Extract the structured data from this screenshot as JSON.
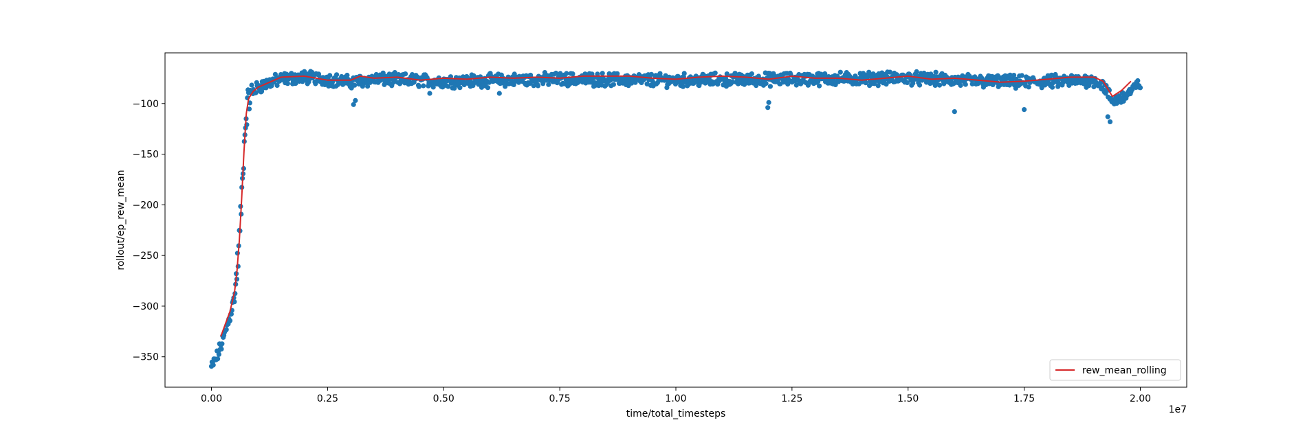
{
  "chart_data": {
    "type": "scatter",
    "xlabel": "time/total_timesteps",
    "ylabel": "rollout/ep_rew_mean",
    "x_offset_label": "1e7",
    "xlim": [
      -0.1,
      2.1
    ],
    "ylim": [
      -380,
      -50
    ],
    "x_scale": 10000000,
    "x_ticks": [
      0.0,
      0.25,
      0.5,
      0.75,
      1.0,
      1.25,
      1.5,
      1.75,
      2.0
    ],
    "x_tick_labels": [
      "0.00",
      "0.25",
      "0.50",
      "0.75",
      "1.00",
      "1.25",
      "1.50",
      "1.75",
      "2.00"
    ],
    "y_ticks": [
      -350,
      -300,
      -250,
      -200,
      -150,
      -100
    ],
    "y_tick_labels": [
      "−350",
      "−300",
      "−250",
      "−200",
      "−150",
      "−100"
    ],
    "grid": false,
    "legend_position": "lower-right",
    "series": [
      {
        "kind": "scatter",
        "color": "#1f77b4",
        "trend_x": [
          0.0,
          0.01,
          0.02,
          0.03,
          0.04,
          0.05,
          0.055,
          0.06,
          0.065,
          0.07,
          0.075,
          0.08,
          0.09,
          0.1,
          0.12,
          0.15,
          0.2,
          0.25,
          0.3,
          0.35,
          0.5,
          0.75,
          1.0,
          1.25,
          1.5,
          1.65,
          1.75,
          1.9,
          1.92,
          1.94,
          1.96,
          1.98,
          2.0
        ],
        "trend_y": [
          -360,
          -352,
          -340,
          -325,
          -310,
          -290,
          -265,
          -235,
          -195,
          -145,
          -110,
          -96,
          -88,
          -84,
          -80,
          -76,
          -74,
          -76,
          -79,
          -76,
          -78,
          -76,
          -77,
          -76,
          -75,
          -78,
          -79,
          -77,
          -82,
          -98,
          -94,
          -88,
          -80
        ],
        "spread": 5,
        "outliers": [
          [
            0.306,
            -101
          ],
          [
            0.31,
            -97
          ],
          [
            1.198,
            -104
          ],
          [
            1.2,
            -99
          ],
          [
            1.6,
            -108
          ],
          [
            1.75,
            -106
          ],
          [
            1.935,
            -118
          ],
          [
            1.93,
            -113
          ],
          [
            0.62,
            -90
          ],
          [
            0.47,
            -90
          ]
        ]
      },
      {
        "kind": "line",
        "name": "rew_mean_rolling",
        "color": "#d62728",
        "x": [
          0.02,
          0.04,
          0.05,
          0.055,
          0.06,
          0.065,
          0.07,
          0.075,
          0.08,
          0.09,
          0.1,
          0.12,
          0.15,
          0.2,
          0.25,
          0.3,
          0.32,
          0.35,
          0.4,
          0.45,
          0.5,
          0.55,
          0.6,
          0.65,
          0.7,
          0.75,
          0.8,
          0.85,
          0.9,
          0.95,
          1.0,
          1.05,
          1.1,
          1.15,
          1.2,
          1.25,
          1.3,
          1.35,
          1.4,
          1.45,
          1.5,
          1.55,
          1.6,
          1.65,
          1.7,
          1.75,
          1.8,
          1.85,
          1.9,
          1.92,
          1.94,
          1.96,
          1.98
        ],
        "y": [
          -330,
          -305,
          -285,
          -265,
          -235,
          -195,
          -148,
          -110,
          -95,
          -88,
          -84,
          -80,
          -74,
          -73,
          -77,
          -77,
          -73,
          -75,
          -74,
          -77,
          -75,
          -76,
          -74,
          -75,
          -74,
          -75,
          -73,
          -73,
          -73,
          -75,
          -76,
          -74,
          -73,
          -74,
          -76,
          -73,
          -75,
          -75,
          -77,
          -75,
          -73,
          -76,
          -75,
          -77,
          -79,
          -78,
          -76,
          -74,
          -74,
          -78,
          -93,
          -87,
          -78
        ]
      }
    ]
  }
}
